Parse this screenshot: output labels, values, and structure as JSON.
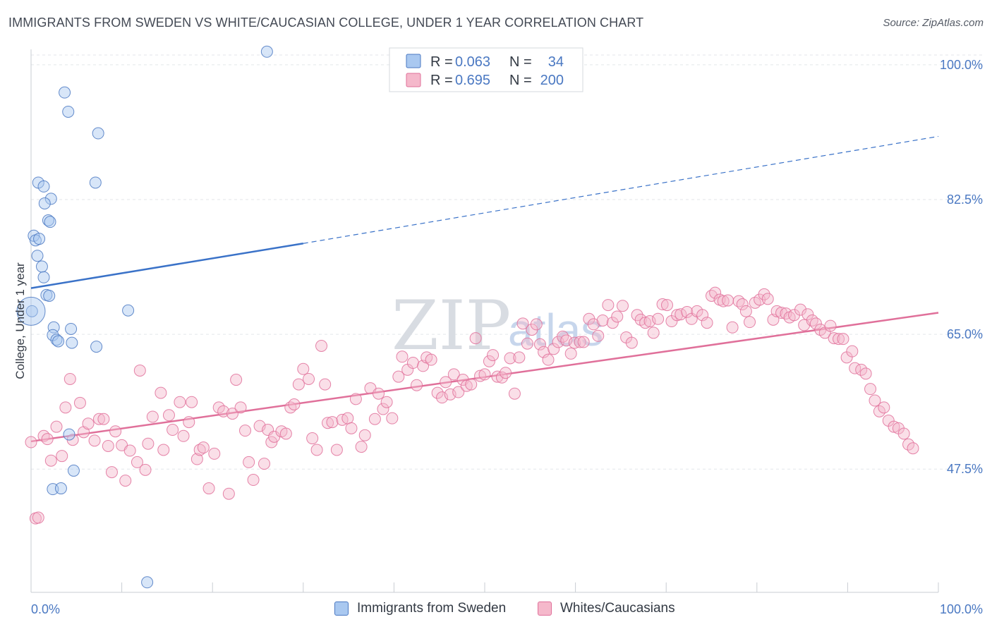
{
  "header": {
    "title": "IMMIGRANTS FROM SWEDEN VS WHITE/CAUCASIAN COLLEGE, UNDER 1 YEAR CORRELATION CHART",
    "source": "Source: ZipAtlas.com"
  },
  "watermark": {
    "zip": "ZIP",
    "atlas": "atlas"
  },
  "legend_box": {
    "rows": [
      {
        "r_label": "R =",
        "r_value": "0.063",
        "n_label": "N =",
        "n_value": "34",
        "color": "#a9c8f0",
        "edge": "#4a78c2"
      },
      {
        "r_label": "R =",
        "r_value": "0.695",
        "n_label": "N =",
        "n_value": "200",
        "color": "#f5b8cb",
        "edge": "#e0709a"
      }
    ]
  },
  "bottom_legend": {
    "items": [
      {
        "label": "Immigrants from Sweden",
        "color": "#a9c8f0",
        "edge": "#4a78c2"
      },
      {
        "label": "Whites/Caucasians",
        "color": "#f5b8cb",
        "edge": "#e0709a"
      }
    ]
  },
  "chart_data": {
    "type": "scatter",
    "title": "IMMIGRANTS FROM SWEDEN VS WHITE/CAUCASIAN COLLEGE, UNDER 1 YEAR CORRELATION CHART",
    "xlabel": "",
    "ylabel": "College, Under 1 year",
    "xlim": [
      0,
      100
    ],
    "ylim": [
      31.5,
      102
    ],
    "x_tick_labels": [
      "0.0%",
      "100.0%"
    ],
    "y_ticks": [
      47.5,
      65.0,
      82.5,
      100.0
    ],
    "y_tick_labels": [
      "47.5%",
      "65.0%",
      "82.5%",
      "100.0%"
    ],
    "grid": true,
    "legend_placement": "top-center",
    "series": [
      {
        "name": "Immigrants from Sweden",
        "color": "#a9c8f0",
        "edge": "#4a78c2",
        "line_color": "#3a72c8",
        "trend": {
          "x0": 0,
          "y0": 71.0,
          "x1": 30,
          "y1": 76.8,
          "dashed_to_x": 100,
          "dashed_to_y": 90.7
        },
        "points": [
          [
            26.0,
            101.7
          ],
          [
            3.7,
            96.4
          ],
          [
            4.1,
            93.9
          ],
          [
            7.4,
            91.1
          ],
          [
            0.8,
            84.7
          ],
          [
            7.1,
            84.7
          ],
          [
            1.4,
            84.2
          ],
          [
            2.2,
            82.6
          ],
          [
            1.5,
            82.0
          ],
          [
            1.9,
            79.8
          ],
          [
            2.1,
            79.6
          ],
          [
            0.3,
            77.8
          ],
          [
            0.5,
            77.2
          ],
          [
            0.9,
            77.4
          ],
          [
            0.7,
            75.2
          ],
          [
            1.2,
            73.8
          ],
          [
            1.4,
            72.4
          ],
          [
            1.7,
            70.1
          ],
          [
            2.0,
            70.0
          ],
          [
            10.7,
            68.1
          ],
          [
            0.1,
            68.0
          ],
          [
            2.5,
            65.9
          ],
          [
            4.4,
            65.7
          ],
          [
            2.4,
            64.9
          ],
          [
            2.8,
            64.3
          ],
          [
            3.0,
            64.1
          ],
          [
            4.5,
            63.9
          ],
          [
            7.2,
            63.4
          ],
          [
            4.2,
            52.0
          ],
          [
            4.7,
            47.3
          ],
          [
            2.4,
            44.9
          ],
          [
            3.3,
            45.0
          ],
          [
            12.8,
            32.8
          ],
          [
            0.0,
            68.0
          ]
        ]
      },
      {
        "name": "Whites/Caucasians",
        "color": "#f5b8cb",
        "edge": "#e0709a",
        "line_color": "#e0709a",
        "trend": {
          "x0": 0,
          "y0": 51.1,
          "x1": 100,
          "y1": 67.8
        },
        "points": [
          [
            0.5,
            41.1
          ],
          [
            0.8,
            41.2
          ],
          [
            1.4,
            51.8
          ],
          [
            1.8,
            51.4
          ],
          [
            2.2,
            48.6
          ],
          [
            2.8,
            53.0
          ],
          [
            3.4,
            49.2
          ],
          [
            3.8,
            55.5
          ],
          [
            4.3,
            59.2
          ],
          [
            4.6,
            51.3
          ],
          [
            5.4,
            56.1
          ],
          [
            5.8,
            52.3
          ],
          [
            6.3,
            53.4
          ],
          [
            7.0,
            51.2
          ],
          [
            7.5,
            54.0
          ],
          [
            8.0,
            54.0
          ],
          [
            8.5,
            50.5
          ],
          [
            8.9,
            47.1
          ],
          [
            9.3,
            52.4
          ],
          [
            10.0,
            50.6
          ],
          [
            10.4,
            46.0
          ],
          [
            10.9,
            49.9
          ],
          [
            11.7,
            48.4
          ],
          [
            12.0,
            60.3
          ],
          [
            12.6,
            47.4
          ],
          [
            12.9,
            50.8
          ],
          [
            13.4,
            54.3
          ],
          [
            14.3,
            57.4
          ],
          [
            14.6,
            50.0
          ],
          [
            15.2,
            54.5
          ],
          [
            15.6,
            52.6
          ],
          [
            16.4,
            56.2
          ],
          [
            16.8,
            51.8
          ],
          [
            17.4,
            53.6
          ],
          [
            17.7,
            56.2
          ],
          [
            18.3,
            48.8
          ],
          [
            18.6,
            50.0
          ],
          [
            19.0,
            50.3
          ],
          [
            19.6,
            45.0
          ],
          [
            20.2,
            49.5
          ],
          [
            20.7,
            55.5
          ],
          [
            21.2,
            55.0
          ],
          [
            21.8,
            44.3
          ],
          [
            22.2,
            54.7
          ],
          [
            22.6,
            59.1
          ],
          [
            23.1,
            55.5
          ],
          [
            23.6,
            52.5
          ],
          [
            24.0,
            48.4
          ],
          [
            24.5,
            46.1
          ],
          [
            25.2,
            53.1
          ],
          [
            25.7,
            48.2
          ],
          [
            26.1,
            52.6
          ],
          [
            26.5,
            51.0
          ],
          [
            26.8,
            51.7
          ],
          [
            27.6,
            52.4
          ],
          [
            28.1,
            52.1
          ],
          [
            28.6,
            55.5
          ],
          [
            29.0,
            55.9
          ],
          [
            29.5,
            58.5
          ],
          [
            30.0,
            60.5
          ],
          [
            30.6,
            59.2
          ],
          [
            31.0,
            51.5
          ],
          [
            31.5,
            50.0
          ],
          [
            32.0,
            63.5
          ],
          [
            32.4,
            58.5
          ],
          [
            32.7,
            53.5
          ],
          [
            33.2,
            53.6
          ],
          [
            33.7,
            50.0
          ],
          [
            34.3,
            53.9
          ],
          [
            34.9,
            54.1
          ],
          [
            35.3,
            52.8
          ],
          [
            35.8,
            56.6
          ],
          [
            36.4,
            50.4
          ],
          [
            36.8,
            51.9
          ],
          [
            37.4,
            58.0
          ],
          [
            37.9,
            54.0
          ],
          [
            38.3,
            57.3
          ],
          [
            38.8,
            55.3
          ],
          [
            39.2,
            56.2
          ],
          [
            39.8,
            54.1
          ],
          [
            40.5,
            59.5
          ],
          [
            40.9,
            62.1
          ],
          [
            41.5,
            60.4
          ],
          [
            42.1,
            61.3
          ],
          [
            42.5,
            58.4
          ],
          [
            43.2,
            60.9
          ],
          [
            43.6,
            62.0
          ],
          [
            44.1,
            61.7
          ],
          [
            44.8,
            57.4
          ],
          [
            45.3,
            56.8
          ],
          [
            45.7,
            58.8
          ],
          [
            46.2,
            57.2
          ],
          [
            46.6,
            59.8
          ],
          [
            47.1,
            57.5
          ],
          [
            47.6,
            59.1
          ],
          [
            48.0,
            58.3
          ],
          [
            48.5,
            58.5
          ],
          [
            49.0,
            64.5
          ],
          [
            49.5,
            59.6
          ],
          [
            50.0,
            59.8
          ],
          [
            50.5,
            61.5
          ],
          [
            50.9,
            62.3
          ],
          [
            51.4,
            59.5
          ],
          [
            51.9,
            59.4
          ],
          [
            52.3,
            60.0
          ],
          [
            52.8,
            61.9
          ],
          [
            53.3,
            57.3
          ],
          [
            53.8,
            62.0
          ],
          [
            54.2,
            66.4
          ],
          [
            54.7,
            63.8
          ],
          [
            55.2,
            65.6
          ],
          [
            55.7,
            66.3
          ],
          [
            56.1,
            63.7
          ],
          [
            56.5,
            62.7
          ],
          [
            57.0,
            61.7
          ],
          [
            57.6,
            63.1
          ],
          [
            58.1,
            64.0
          ],
          [
            58.6,
            64.7
          ],
          [
            59.0,
            64.2
          ],
          [
            59.5,
            62.5
          ],
          [
            59.9,
            63.9
          ],
          [
            60.5,
            64.0
          ],
          [
            60.9,
            64.0
          ],
          [
            61.5,
            67.0
          ],
          [
            62.0,
            66.3
          ],
          [
            62.5,
            64.8
          ],
          [
            63.0,
            66.8
          ],
          [
            63.6,
            68.8
          ],
          [
            64.1,
            66.5
          ],
          [
            64.6,
            67.3
          ],
          [
            65.2,
            68.7
          ],
          [
            65.6,
            64.6
          ],
          [
            66.2,
            63.9
          ],
          [
            66.8,
            67.5
          ],
          [
            67.2,
            66.9
          ],
          [
            67.7,
            66.5
          ],
          [
            68.2,
            66.7
          ],
          [
            68.6,
            65.2
          ],
          [
            69.1,
            67.0
          ],
          [
            69.6,
            68.9
          ],
          [
            70.1,
            68.8
          ],
          [
            70.6,
            66.7
          ],
          [
            71.2,
            67.5
          ],
          [
            71.6,
            67.6
          ],
          [
            72.3,
            67.9
          ],
          [
            72.8,
            67.0
          ],
          [
            73.4,
            68.0
          ],
          [
            74.0,
            67.5
          ],
          [
            74.5,
            66.5
          ],
          [
            75.0,
            70.0
          ],
          [
            75.4,
            70.4
          ],
          [
            75.9,
            69.5
          ],
          [
            76.3,
            69.3
          ],
          [
            76.8,
            69.4
          ],
          [
            77.3,
            65.9
          ],
          [
            78.0,
            69.3
          ],
          [
            78.4,
            68.9
          ],
          [
            78.8,
            68.0
          ],
          [
            79.2,
            66.6
          ],
          [
            79.8,
            69.1
          ],
          [
            80.3,
            69.5
          ],
          [
            80.8,
            70.2
          ],
          [
            81.2,
            69.6
          ],
          [
            81.8,
            66.9
          ],
          [
            82.2,
            68.0
          ],
          [
            82.7,
            67.8
          ],
          [
            83.2,
            67.7
          ],
          [
            83.6,
            67.2
          ],
          [
            84.1,
            67.5
          ],
          [
            84.8,
            68.2
          ],
          [
            85.2,
            66.2
          ],
          [
            85.6,
            67.6
          ],
          [
            86.1,
            66.8
          ],
          [
            86.5,
            66.4
          ],
          [
            87.0,
            65.6
          ],
          [
            87.5,
            65.2
          ],
          [
            88.1,
            66.1
          ],
          [
            88.5,
            64.5
          ],
          [
            89.0,
            64.4
          ],
          [
            89.5,
            64.4
          ],
          [
            89.9,
            62.0
          ],
          [
            90.5,
            62.8
          ],
          [
            90.8,
            60.6
          ],
          [
            91.5,
            60.4
          ],
          [
            92.0,
            59.9
          ],
          [
            92.5,
            57.9
          ],
          [
            93.0,
            56.4
          ],
          [
            93.5,
            55.0
          ],
          [
            94.0,
            55.5
          ],
          [
            94.5,
            53.8
          ],
          [
            95.1,
            53.0
          ],
          [
            95.6,
            52.8
          ],
          [
            96.2,
            52.1
          ],
          [
            96.7,
            50.7
          ],
          [
            97.2,
            50.2
          ],
          [
            0.0,
            51.0
          ]
        ]
      }
    ]
  }
}
